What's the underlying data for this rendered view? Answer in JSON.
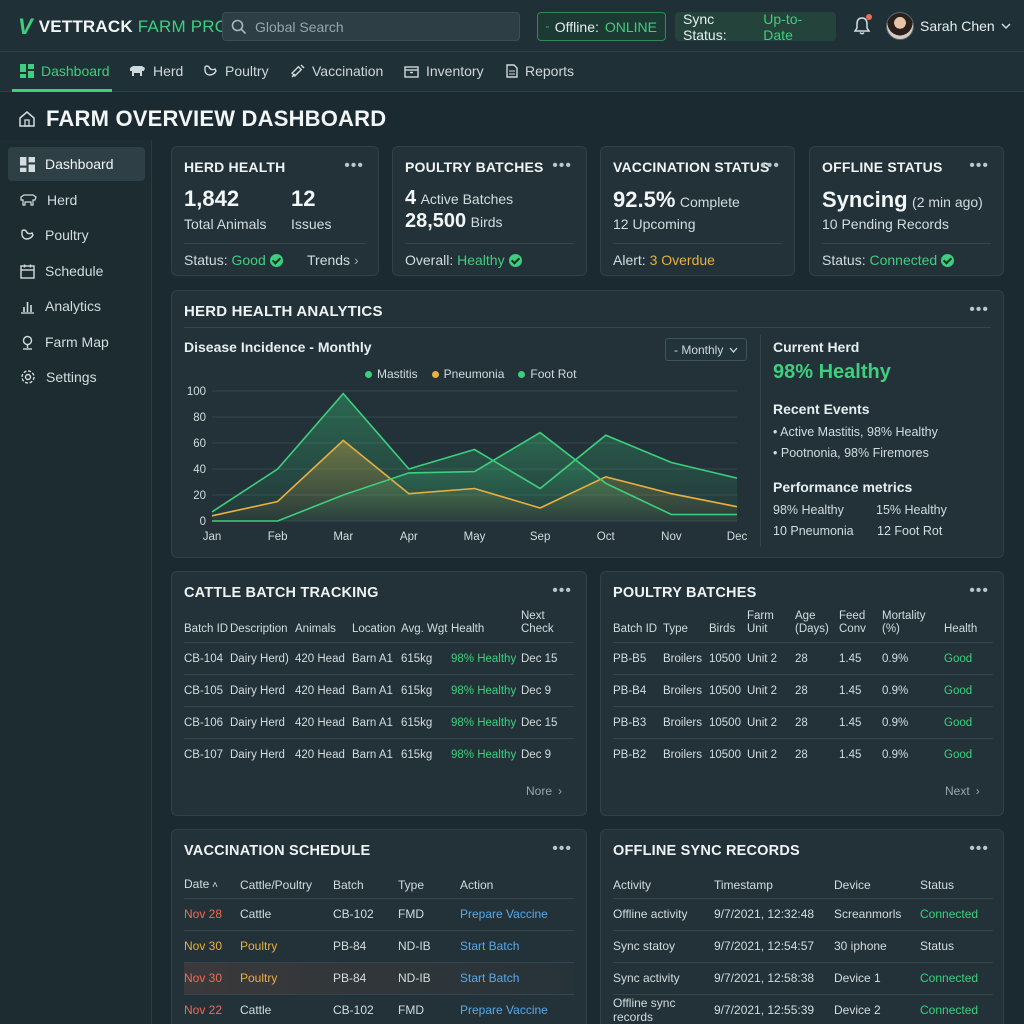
{
  "app": {
    "logo_a": "VETTRACK",
    "logo_b": "FARM PRO"
  },
  "search": {
    "placeholder": "Global Search"
  },
  "status": {
    "offline_label": "Offline:",
    "offline_value": "ONLINE",
    "sync_label": "Sync Status:",
    "sync_value": "Up-to-Date"
  },
  "user": {
    "name": "Sarah Chen"
  },
  "nav": [
    {
      "label": "Dashboard",
      "icon": "dashboard-icon"
    },
    {
      "label": "Herd",
      "icon": "cow-icon"
    },
    {
      "label": "Poultry",
      "icon": "bird-icon"
    },
    {
      "label": "Vaccination",
      "icon": "syringe-icon"
    },
    {
      "label": "Inventory",
      "icon": "box-icon"
    },
    {
      "label": "Reports",
      "icon": "document-icon"
    }
  ],
  "page_title": "FARM OVERVIEW DASHBOARD",
  "sidebar": [
    {
      "label": "Dashboard",
      "icon": "dashboard-icon"
    },
    {
      "label": "Herd",
      "icon": "cow-icon"
    },
    {
      "label": "Poultry",
      "icon": "bird-icon"
    },
    {
      "label": "Schedule",
      "icon": "calendar-icon"
    },
    {
      "label": "Analytics",
      "icon": "bar-chart-icon"
    },
    {
      "label": "Farm Map",
      "icon": "map-pin-icon"
    },
    {
      "label": "Settings",
      "icon": "gear-icon"
    }
  ],
  "cards": {
    "herd": {
      "title": "HERD HEALTH",
      "total": "1,842",
      "total_label": "Total Animals",
      "issues": "12",
      "issues_label": "Issues",
      "status_label": "Status:",
      "status_value": "Good",
      "trends": "Trends"
    },
    "poultry": {
      "title": "POULTRY BATCHES",
      "active_num": "4",
      "active_label": "Active Batches",
      "birds_num": "28,500",
      "birds_label": "Birds",
      "overall_label": "Overall:",
      "overall_value": "Healthy"
    },
    "vacc": {
      "title": "VACCINATION STATUS",
      "pct": "92.5%",
      "pct_label": "Complete",
      "upcoming": "12 Upcoming",
      "alert_label": "Alert:",
      "alert_value": "3 Overdue"
    },
    "offline": {
      "title": "OFFLINE STATUS",
      "syncing": "Syncing",
      "ago": "(2 min ago)",
      "pending": "10 Pending Records",
      "status_label": "Status:",
      "status_value": "Connected"
    }
  },
  "analytics": {
    "title": "HERD HEALTH ANALYTICS",
    "chart_title": "Disease Incidence - Monthly",
    "period": "- Monthly",
    "current_herd_label": "Current Herd",
    "current_herd_value": "98% Healthy",
    "recent_events_label": "Recent Events",
    "events": [
      "Active Mastitis, 98% Healthy",
      "Pootnonia, 98% Firemores"
    ],
    "perf_label": "Performance metrics",
    "perf": [
      "98% Healthy",
      "15% Healthy",
      "10 Pneumonia",
      "12 Foot Rot"
    ]
  },
  "chart_data": {
    "type": "area",
    "title": "Disease Incidence - Monthly",
    "categories": [
      "Jan",
      "Feb",
      "Mar",
      "Apr",
      "May",
      "Sep",
      "Oct",
      "Nov",
      "Dec"
    ],
    "ylim": [
      0,
      100
    ],
    "yticks": [
      0,
      20,
      40,
      60,
      80,
      100
    ],
    "series": [
      {
        "name": "Mastitis",
        "color": "#3ecf7e",
        "values": [
          7,
          40,
          98,
          40,
          55,
          25,
          66,
          45,
          33
        ]
      },
      {
        "name": "Pneumonia",
        "color": "#e8b040",
        "values": [
          4,
          15,
          62,
          21,
          25,
          10,
          34,
          21,
          11
        ]
      },
      {
        "name": "Foot Rot",
        "color": "#3ecf7e",
        "values": [
          0,
          0,
          20,
          37,
          38,
          68,
          29,
          5,
          5
        ]
      }
    ],
    "grid": true,
    "legend": "top-center"
  },
  "cattle": {
    "title": "CATTLE BATCH TRACKING",
    "headers": [
      "Batch ID",
      "Description",
      "Animals",
      "Location",
      "Avg. Wgt",
      "Health",
      "Next Check"
    ],
    "rows": [
      [
        "CB-104",
        "Dairy Herd)",
        "420 Head",
        "Barn A1",
        "615kg",
        "98% Healthy",
        "Dec 15"
      ],
      [
        "CB-105",
        "Dairy Herd",
        "420 Head",
        "Barn A1",
        "615kg",
        "98% Healthy",
        "Dec 9"
      ],
      [
        "CB-106",
        "Dairy Herd",
        "420 Head",
        "Barn A1",
        "615kg",
        "98% Healthy",
        "Dec 15"
      ],
      [
        "CB-107",
        "Dairy Herd",
        "420 Head",
        "Barn A1",
        "615kg",
        "98% Healthy",
        "Dec 9"
      ]
    ],
    "more": "Nore"
  },
  "poultry_table": {
    "title": "POULTRY BATCHES",
    "headers": [
      "Batch ID",
      "Type",
      "Birds",
      "Farm Unit",
      "Age (Days)",
      "Feed Conv",
      "Mortality (%)",
      "Health"
    ],
    "rows": [
      [
        "PB-B5",
        "Broilers",
        "10500",
        "Unit 2",
        "28",
        "1.45",
        "0.9%",
        "Good"
      ],
      [
        "PB-B4",
        "Broilers",
        "10500",
        "Unit 2",
        "28",
        "1.45",
        "0.9%",
        "Good"
      ],
      [
        "PB-B3",
        "Broilers",
        "10500",
        "Unit 2",
        "28",
        "1.45",
        "0.9%",
        "Good"
      ],
      [
        "PB-B2",
        "Broilers",
        "10500",
        "Unit 2",
        "28",
        "1.45",
        "0.9%",
        "Good"
      ]
    ],
    "more": "Next"
  },
  "vaccination": {
    "title": "VACCINATION SCHEDULE",
    "headers": [
      "Date",
      "Cattle/Poultry",
      "Batch",
      "Type",
      "Action"
    ],
    "rows": [
      [
        "Nov 28",
        "Cattle",
        "CB-102",
        "FMD",
        "Prepare Vaccine"
      ],
      [
        "Nov 30",
        "Poultry",
        "PB-84",
        "ND-IB",
        "Start Batch"
      ],
      [
        "Nov 30",
        "Poultry",
        "PB-84",
        "ND-IB",
        "Start Batch"
      ],
      [
        "Nov 22",
        "Cattle",
        "CB-102",
        "FMD",
        "Prepare Vaccine"
      ]
    ]
  },
  "sync_records": {
    "title": "OFFLINE SYNC RECORDS",
    "headers": [
      "Activity",
      "Timestamp",
      "Device",
      "Status"
    ],
    "rows": [
      [
        "Offline activity",
        "9/7/2021, 12:32:48",
        "Screanmorls",
        "Connected"
      ],
      [
        "Sync statoy",
        "9/7/2021, 12:54:57",
        "30 iphone",
        "Status"
      ],
      [
        "Sync activity",
        "9/7/2021, 12:58:38",
        "Device 1",
        "Connected"
      ],
      [
        "Offline sync records",
        "9/7/2021, 12:55:39",
        "Device 2",
        "Connected"
      ]
    ]
  }
}
